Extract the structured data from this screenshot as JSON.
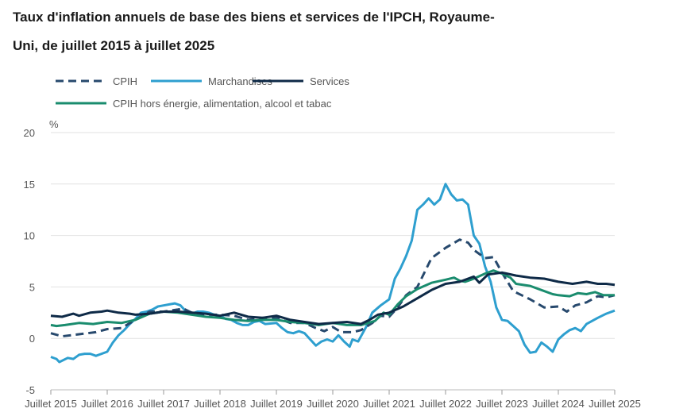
{
  "title": {
    "line1": "Taux d'inflation annuels de base des biens et services de l'IPCH, Royaume-",
    "line2": "Uni, de juillet 2015 à juillet 2025"
  },
  "chart_data": {
    "type": "line",
    "title": "Taux d'inflation annuels de base des biens et services de l'IPCH, Royaume-Uni, de juillet 2015 à juillet 2025",
    "ylabel": "%",
    "ylim": [
      -5,
      20
    ],
    "yticks": [
      20,
      15,
      10,
      5,
      0,
      -5
    ],
    "xlim": [
      2015.5,
      2025.5
    ],
    "xticks": [
      {
        "x": 2015.5,
        "label": "Juillet 2015"
      },
      {
        "x": 2016.5,
        "label": "Juillet 2016"
      },
      {
        "x": 2017.5,
        "label": "Juillet 2017"
      },
      {
        "x": 2018.5,
        "label": "Juillet 2018"
      },
      {
        "x": 2019.5,
        "label": "Juillet 2019"
      },
      {
        "x": 2020.5,
        "label": "Juillet 2020"
      },
      {
        "x": 2021.5,
        "label": "Juillet 2021"
      },
      {
        "x": 2022.5,
        "label": "Juillet 2022"
      },
      {
        "x": 2023.5,
        "label": "Juillet 2023"
      },
      {
        "x": 2024.5,
        "label": "Juillet 2024"
      },
      {
        "x": 2025.5,
        "label": "Juillet 2025"
      }
    ],
    "grid": true,
    "legend_position": "top-left",
    "series": [
      {
        "name": "CPIH",
        "color": "#27496d",
        "dashed": true,
        "points": [
          [
            2015.5,
            0.5
          ],
          [
            2015.7,
            0.2
          ],
          [
            2016.0,
            0.4
          ],
          [
            2016.3,
            0.6
          ],
          [
            2016.5,
            0.9
          ],
          [
            2016.75,
            1.0
          ],
          [
            2017.0,
            1.8
          ],
          [
            2017.25,
            2.6
          ],
          [
            2017.5,
            2.6
          ],
          [
            2017.75,
            2.8
          ],
          [
            2017.85,
            2.9
          ],
          [
            2018.0,
            2.5
          ],
          [
            2018.25,
            2.3
          ],
          [
            2018.5,
            2.3
          ],
          [
            2018.75,
            2.2
          ],
          [
            2019.0,
            1.8
          ],
          [
            2019.25,
            2.0
          ],
          [
            2019.5,
            2.0
          ],
          [
            2019.75,
            1.5
          ],
          [
            2020.0,
            1.5
          ],
          [
            2020.2,
            1.0
          ],
          [
            2020.35,
            0.7
          ],
          [
            2020.5,
            1.1
          ],
          [
            2020.65,
            0.6
          ],
          [
            2020.85,
            0.6
          ],
          [
            2021.0,
            0.8
          ],
          [
            2021.2,
            1.5
          ],
          [
            2021.35,
            2.2
          ],
          [
            2021.5,
            2.1
          ],
          [
            2021.65,
            3.0
          ],
          [
            2021.8,
            4.2
          ],
          [
            2022.0,
            5.0
          ],
          [
            2022.25,
            7.8
          ],
          [
            2022.5,
            8.8
          ],
          [
            2022.75,
            9.6
          ],
          [
            2022.9,
            9.3
          ],
          [
            2023.0,
            8.6
          ],
          [
            2023.2,
            7.8
          ],
          [
            2023.35,
            7.9
          ],
          [
            2023.5,
            6.4
          ],
          [
            2023.7,
            4.6
          ],
          [
            2023.85,
            4.2
          ],
          [
            2024.0,
            3.8
          ],
          [
            2024.25,
            3.0
          ],
          [
            2024.5,
            3.1
          ],
          [
            2024.65,
            2.6
          ],
          [
            2024.8,
            3.2
          ],
          [
            2025.0,
            3.5
          ],
          [
            2025.2,
            4.1
          ],
          [
            2025.35,
            4.0
          ],
          [
            2025.5,
            4.2
          ]
        ]
      },
      {
        "name": "Marchandises",
        "color": "#2e9fcf",
        "dashed": false,
        "points": [
          [
            2015.5,
            -1.8
          ],
          [
            2015.6,
            -2.0
          ],
          [
            2015.65,
            -2.3
          ],
          [
            2015.8,
            -1.9
          ],
          [
            2015.9,
            -2.0
          ],
          [
            2016.0,
            -1.6
          ],
          [
            2016.1,
            -1.5
          ],
          [
            2016.2,
            -1.5
          ],
          [
            2016.3,
            -1.7
          ],
          [
            2016.4,
            -1.5
          ],
          [
            2016.5,
            -1.3
          ],
          [
            2016.6,
            -0.4
          ],
          [
            2016.7,
            0.3
          ],
          [
            2016.8,
            0.8
          ],
          [
            2016.9,
            1.4
          ],
          [
            2017.0,
            1.9
          ],
          [
            2017.1,
            2.5
          ],
          [
            2017.2,
            2.6
          ],
          [
            2017.3,
            2.8
          ],
          [
            2017.4,
            3.1
          ],
          [
            2017.5,
            3.2
          ],
          [
            2017.6,
            3.3
          ],
          [
            2017.7,
            3.4
          ],
          [
            2017.8,
            3.2
          ],
          [
            2017.9,
            2.6
          ],
          [
            2018.0,
            2.4
          ],
          [
            2018.1,
            2.6
          ],
          [
            2018.2,
            2.6
          ],
          [
            2018.3,
            2.5
          ],
          [
            2018.4,
            2.3
          ],
          [
            2018.5,
            2.2
          ],
          [
            2018.6,
            1.9
          ],
          [
            2018.7,
            1.8
          ],
          [
            2018.8,
            1.5
          ],
          [
            2018.9,
            1.3
          ],
          [
            2019.0,
            1.3
          ],
          [
            2019.1,
            1.6
          ],
          [
            2019.2,
            1.7
          ],
          [
            2019.3,
            1.4
          ],
          [
            2019.5,
            1.5
          ],
          [
            2019.6,
            1.0
          ],
          [
            2019.7,
            0.6
          ],
          [
            2019.8,
            0.5
          ],
          [
            2019.9,
            0.7
          ],
          [
            2020.0,
            0.5
          ],
          [
            2020.1,
            -0.1
          ],
          [
            2020.2,
            -0.7
          ],
          [
            2020.3,
            -0.3
          ],
          [
            2020.4,
            -0.1
          ],
          [
            2020.5,
            -0.3
          ],
          [
            2020.6,
            0.3
          ],
          [
            2020.7,
            -0.3
          ],
          [
            2020.8,
            -0.8
          ],
          [
            2020.85,
            -0.1
          ],
          [
            2020.95,
            -0.3
          ],
          [
            2021.0,
            0.2
          ],
          [
            2021.1,
            1.2
          ],
          [
            2021.2,
            2.5
          ],
          [
            2021.35,
            3.2
          ],
          [
            2021.5,
            3.8
          ],
          [
            2021.6,
            5.8
          ],
          [
            2021.7,
            6.8
          ],
          [
            2021.8,
            8.0
          ],
          [
            2021.9,
            9.5
          ],
          [
            2022.0,
            12.5
          ],
          [
            2022.1,
            13.0
          ],
          [
            2022.2,
            13.6
          ],
          [
            2022.3,
            13.0
          ],
          [
            2022.4,
            13.5
          ],
          [
            2022.5,
            15.0
          ],
          [
            2022.6,
            14.0
          ],
          [
            2022.7,
            13.4
          ],
          [
            2022.8,
            13.5
          ],
          [
            2022.9,
            13.0
          ],
          [
            2023.0,
            10.0
          ],
          [
            2023.1,
            9.2
          ],
          [
            2023.2,
            7.0
          ],
          [
            2023.3,
            5.5
          ],
          [
            2023.4,
            3.0
          ],
          [
            2023.5,
            1.8
          ],
          [
            2023.6,
            1.7
          ],
          [
            2023.7,
            1.2
          ],
          [
            2023.8,
            0.7
          ],
          [
            2023.9,
            -0.6
          ],
          [
            2024.0,
            -1.4
          ],
          [
            2024.1,
            -1.3
          ],
          [
            2024.2,
            -0.4
          ],
          [
            2024.3,
            -0.8
          ],
          [
            2024.4,
            -1.3
          ],
          [
            2024.5,
            -0.1
          ],
          [
            2024.6,
            0.4
          ],
          [
            2024.7,
            0.8
          ],
          [
            2024.8,
            1.0
          ],
          [
            2024.9,
            0.7
          ],
          [
            2025.0,
            1.4
          ],
          [
            2025.1,
            1.7
          ],
          [
            2025.2,
            2.0
          ],
          [
            2025.35,
            2.4
          ],
          [
            2025.5,
            2.7
          ]
        ]
      },
      {
        "name": "Services",
        "color": "#0e2a47",
        "dashed": false,
        "points": [
          [
            2015.5,
            2.2
          ],
          [
            2015.7,
            2.1
          ],
          [
            2015.9,
            2.4
          ],
          [
            2016.0,
            2.2
          ],
          [
            2016.2,
            2.5
          ],
          [
            2016.4,
            2.6
          ],
          [
            2016.5,
            2.7
          ],
          [
            2016.7,
            2.5
          ],
          [
            2016.9,
            2.4
          ],
          [
            2017.0,
            2.3
          ],
          [
            2017.25,
            2.4
          ],
          [
            2017.5,
            2.6
          ],
          [
            2017.75,
            2.6
          ],
          [
            2018.0,
            2.5
          ],
          [
            2018.25,
            2.4
          ],
          [
            2018.5,
            2.2
          ],
          [
            2018.75,
            2.5
          ],
          [
            2019.0,
            2.1
          ],
          [
            2019.25,
            2.0
          ],
          [
            2019.5,
            2.2
          ],
          [
            2019.75,
            1.8
          ],
          [
            2020.0,
            1.6
          ],
          [
            2020.25,
            1.4
          ],
          [
            2020.5,
            1.5
          ],
          [
            2020.75,
            1.6
          ],
          [
            2021.0,
            1.4
          ],
          [
            2021.15,
            1.8
          ],
          [
            2021.3,
            2.3
          ],
          [
            2021.5,
            2.5
          ],
          [
            2021.75,
            3.1
          ],
          [
            2022.0,
            3.9
          ],
          [
            2022.25,
            4.7
          ],
          [
            2022.5,
            5.3
          ],
          [
            2022.75,
            5.5
          ],
          [
            2023.0,
            6.0
          ],
          [
            2023.1,
            5.4
          ],
          [
            2023.25,
            6.2
          ],
          [
            2023.5,
            6.4
          ],
          [
            2023.75,
            6.1
          ],
          [
            2024.0,
            5.9
          ],
          [
            2024.25,
            5.8
          ],
          [
            2024.5,
            5.5
          ],
          [
            2024.75,
            5.3
          ],
          [
            2025.0,
            5.5
          ],
          [
            2025.2,
            5.3
          ],
          [
            2025.35,
            5.3
          ],
          [
            2025.5,
            5.2
          ]
        ]
      },
      {
        "name": "CPIH hors énergie, alimentation, alcool et tabac",
        "color": "#1a8c6e",
        "dashed": false,
        "points": [
          [
            2015.5,
            1.3
          ],
          [
            2015.6,
            1.2
          ],
          [
            2015.75,
            1.3
          ],
          [
            2016.0,
            1.5
          ],
          [
            2016.25,
            1.4
          ],
          [
            2016.5,
            1.6
          ],
          [
            2016.75,
            1.5
          ],
          [
            2017.0,
            1.8
          ],
          [
            2017.25,
            2.4
          ],
          [
            2017.5,
            2.6
          ],
          [
            2017.75,
            2.5
          ],
          [
            2018.0,
            2.3
          ],
          [
            2018.25,
            2.1
          ],
          [
            2018.5,
            2.0
          ],
          [
            2018.75,
            1.8
          ],
          [
            2019.0,
            1.7
          ],
          [
            2019.25,
            1.8
          ],
          [
            2019.5,
            1.8
          ],
          [
            2019.75,
            1.6
          ],
          [
            2020.0,
            1.5
          ],
          [
            2020.25,
            1.3
          ],
          [
            2020.5,
            1.5
          ],
          [
            2020.75,
            1.3
          ],
          [
            2021.0,
            1.3
          ],
          [
            2021.25,
            1.7
          ],
          [
            2021.4,
            2.5
          ],
          [
            2021.5,
            2.3
          ],
          [
            2021.65,
            3.3
          ],
          [
            2021.8,
            4.1
          ],
          [
            2022.0,
            4.8
          ],
          [
            2022.25,
            5.4
          ],
          [
            2022.5,
            5.7
          ],
          [
            2022.65,
            5.9
          ],
          [
            2022.75,
            5.6
          ],
          [
            2022.85,
            5.5
          ],
          [
            2022.95,
            5.7
          ],
          [
            2023.0,
            5.8
          ],
          [
            2023.2,
            6.3
          ],
          [
            2023.35,
            6.6
          ],
          [
            2023.5,
            6.3
          ],
          [
            2023.65,
            5.9
          ],
          [
            2023.75,
            5.3
          ],
          [
            2024.0,
            5.1
          ],
          [
            2024.2,
            4.7
          ],
          [
            2024.4,
            4.3
          ],
          [
            2024.5,
            4.2
          ],
          [
            2024.7,
            4.1
          ],
          [
            2024.85,
            4.4
          ],
          [
            2025.0,
            4.3
          ],
          [
            2025.15,
            4.5
          ],
          [
            2025.3,
            4.2
          ],
          [
            2025.5,
            4.2
          ]
        ]
      }
    ]
  }
}
